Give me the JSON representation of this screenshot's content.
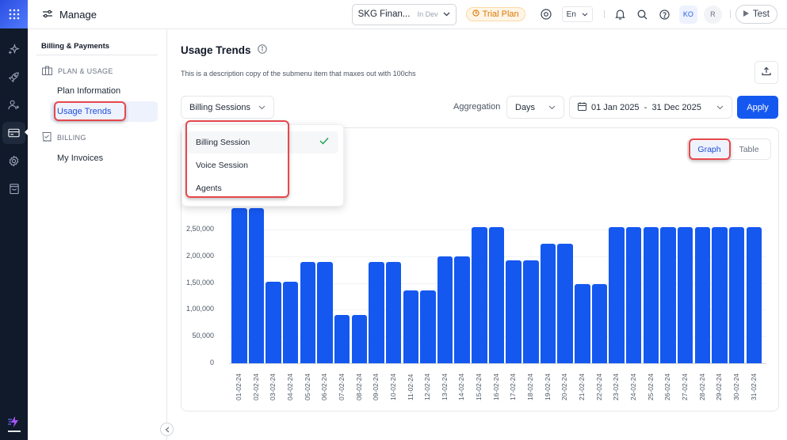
{
  "header": {
    "title": "Manage",
    "org_name": "SKG Finan...",
    "org_env": "In Dev",
    "plan_badge": "Trial Plan",
    "language": "En",
    "avatar_ko": "KO",
    "avatar_r": "R",
    "test_button": "Test"
  },
  "rail": {
    "items": [
      "apps-grid-icon",
      "sparkles-icon",
      "rocket-icon",
      "user-add-icon",
      "credit-card-icon",
      "settings-icon",
      "shopping-bag-icon"
    ],
    "active": "credit-card-icon"
  },
  "subnav": {
    "group_title": "Billing & Payments",
    "sections": [
      {
        "label": "PLAN & USAGE",
        "items": [
          {
            "label": "Plan Information",
            "active": false
          },
          {
            "label": "Usage Trends",
            "active": true
          }
        ]
      },
      {
        "label": "BILLING",
        "items": [
          {
            "label": "My Invoices",
            "active": false
          }
        ]
      }
    ]
  },
  "page": {
    "title": "Usage Trends",
    "description": "This is a description copy of the submenu item that maxes out with 100chs"
  },
  "filters": {
    "metric_selected": "Billing Sessions",
    "aggregation_label": "Aggregation",
    "aggregation_value": "Days",
    "date_range": "01 Jan 2025  -  31 Dec 2025",
    "apply_label": "Apply"
  },
  "dropdown": {
    "options": [
      {
        "label": "Billing Session",
        "selected": true
      },
      {
        "label": "Voice Session",
        "selected": false
      },
      {
        "label": "Agents",
        "selected": false
      }
    ]
  },
  "view_toggle": {
    "options": [
      "Graph",
      "Table"
    ],
    "active": "Graph"
  },
  "colors": {
    "accent": "#1558f0",
    "highlight": "#e5484d",
    "rail_bg": "#111a2b",
    "trial_badge": "#d97706"
  },
  "chart_data": {
    "type": "bar",
    "title": "",
    "xlabel": "",
    "ylabel": "",
    "ylim": [
      0,
      300000
    ],
    "yticks": [
      "0",
      "50,000",
      "1,00,000",
      "1,50,000",
      "2,00,000",
      "2,50,000"
    ],
    "ytick_values": [
      0,
      50000,
      100000,
      150000,
      200000,
      250000
    ],
    "grid": true,
    "legend": null,
    "categories": [
      "01-02-24",
      "02-02-24",
      "03-02-24",
      "04-02-24",
      "05-02-24",
      "06-02-24",
      "07-02-24",
      "08-02-24",
      "09-02-24",
      "10-02-24",
      "11-02-24",
      "12-02-24",
      "13-02-24",
      "14-02-24",
      "15-02-24",
      "16-02-24",
      "17-02-24",
      "18-02-24",
      "19-02-24",
      "20-02-24",
      "21-02-24",
      "22-02-24",
      "23-02-24",
      "24-02-24",
      "25-02-24",
      "26-02-24",
      "27-02-24",
      "28-02-24",
      "29-02-24",
      "30-02-24",
      "31-02-24"
    ],
    "values": [
      290000,
      290000,
      153000,
      153000,
      190000,
      190000,
      90000,
      90000,
      190000,
      190000,
      136000,
      136000,
      200000,
      200000,
      255000,
      255000,
      192000,
      192000,
      223000,
      223000,
      148000,
      148000,
      255000,
      255000,
      255000,
      255000,
      255000,
      255000,
      255000,
      255000,
      255000
    ]
  }
}
